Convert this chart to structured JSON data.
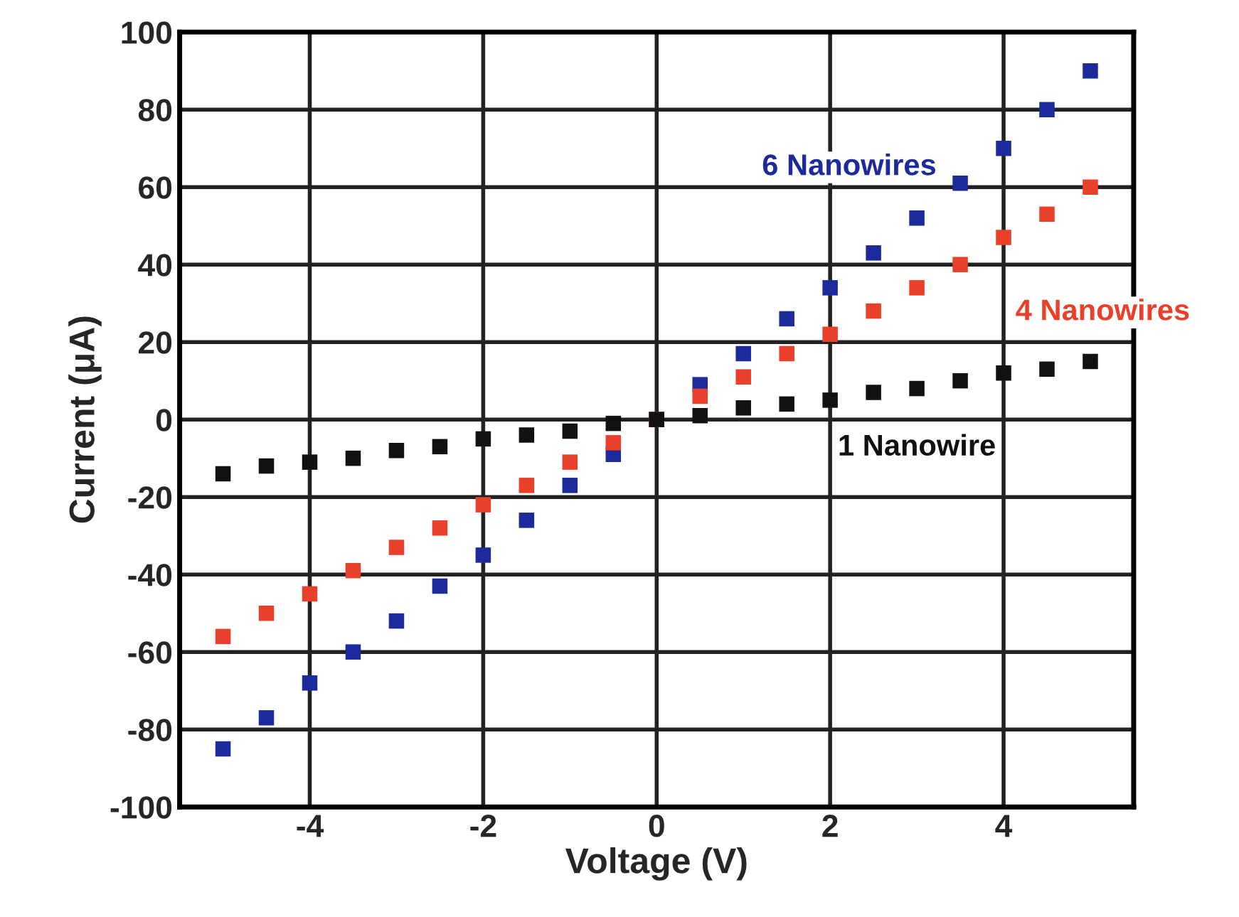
{
  "chart_data": {
    "type": "scatter",
    "xlabel": "Voltage (V)",
    "ylabel": "Current (μA)",
    "x": [
      -5,
      -4.5,
      -4,
      -3.5,
      -3,
      -2.5,
      -2,
      -1.5,
      -1,
      -0.5,
      0,
      0.5,
      1,
      1.5,
      2,
      2.5,
      3,
      3.5,
      4,
      4.5,
      5
    ],
    "series": [
      {
        "name": "6 Nanowires",
        "color": "#1c2a9c",
        "values": [
          -85,
          -77,
          -68,
          -60,
          -52,
          -43,
          -35,
          -26,
          -17,
          -9,
          0,
          9,
          17,
          26,
          34,
          43,
          52,
          61,
          70,
          80,
          90
        ]
      },
      {
        "name": "4 Nanowires",
        "color": "#e8402a",
        "values": [
          -56,
          -50,
          -45,
          -39,
          -33,
          -28,
          -22,
          -17,
          -11,
          -6,
          0,
          6,
          11,
          17,
          22,
          28,
          34,
          40,
          47,
          53,
          60
        ]
      },
      {
        "name": "1 Nanowire",
        "color": "#111111",
        "values": [
          -14,
          -12,
          -11,
          -10,
          -8,
          -7,
          -5,
          -4,
          -3,
          -1,
          0,
          1,
          3,
          4,
          5,
          7,
          8,
          10,
          12,
          13,
          15
        ]
      }
    ],
    "xlim": [
      -5.5,
      5.5
    ],
    "ylim": [
      -100,
      100
    ],
    "xticks": [
      -4,
      -2,
      0,
      2,
      4
    ],
    "yticks": [
      -100,
      -80,
      -60,
      -40,
      -20,
      0,
      20,
      40,
      60,
      80,
      100
    ],
    "grid": true,
    "marker": "square",
    "legend": false
  }
}
